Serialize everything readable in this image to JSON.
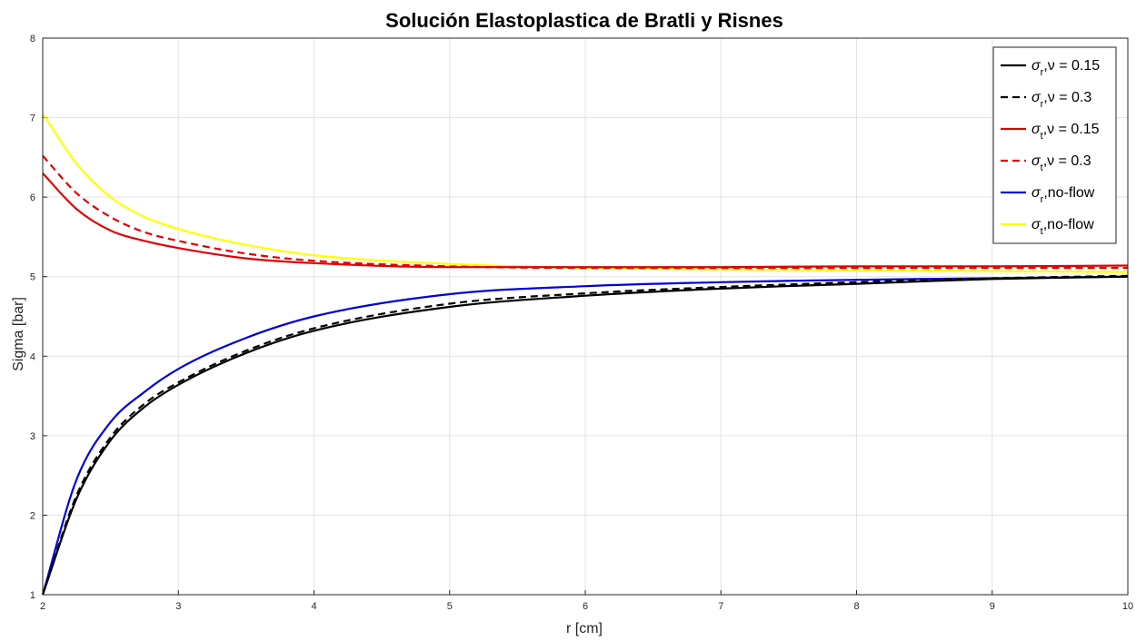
{
  "chart_data": {
    "type": "line",
    "title": "Solución Elastoplastica de Bratli y Risnes",
    "xlabel": "r [cm]",
    "ylabel": "Sigma [bar]",
    "xlim": [
      2,
      10
    ],
    "ylim": [
      1,
      8
    ],
    "xticks": [
      "2",
      "3",
      "4",
      "5",
      "6",
      "7",
      "8",
      "9",
      "10"
    ],
    "yticks": [
      "1",
      "2",
      "3",
      "4",
      "5",
      "6",
      "7",
      "8"
    ],
    "grid": true,
    "legend_position": "top-right",
    "series": [
      {
        "symbol": "σ",
        "sub": "r",
        "suffix": ",ν = 0.15",
        "color": "#000000",
        "dash": "solid",
        "x": [
          2,
          2.25,
          2.5,
          2.75,
          3,
          3.5,
          4,
          5,
          6,
          7,
          8,
          9,
          10
        ],
        "y": [
          1.0,
          2.21,
          2.94,
          3.36,
          3.64,
          4.04,
          4.32,
          4.62,
          4.76,
          4.85,
          4.91,
          4.97,
          5.0
        ]
      },
      {
        "symbol": "σ",
        "sub": "r",
        "suffix": ",ν = 0.3",
        "color": "#000000",
        "dash": "dashed",
        "x": [
          2,
          2.25,
          2.5,
          2.75,
          3,
          3.5,
          4,
          5,
          6,
          7,
          8,
          9,
          10
        ],
        "y": [
          1.0,
          2.25,
          2.98,
          3.4,
          3.67,
          4.07,
          4.35,
          4.66,
          4.79,
          4.87,
          4.93,
          4.98,
          5.01
        ]
      },
      {
        "symbol": "σ",
        "sub": "t",
        "suffix": ",ν = 0.15",
        "color": "#e00000",
        "dash": "solid",
        "x": [
          2,
          2.25,
          2.5,
          2.75,
          3,
          3.5,
          4,
          5,
          6,
          7,
          8,
          9,
          10
        ],
        "y": [
          6.3,
          5.85,
          5.58,
          5.45,
          5.36,
          5.23,
          5.17,
          5.12,
          5.12,
          5.12,
          5.13,
          5.13,
          5.14
        ]
      },
      {
        "symbol": "σ",
        "sub": "t",
        "suffix": ",ν = 0.3",
        "color": "#e00000",
        "dash": "dashed",
        "x": [
          2,
          2.25,
          2.5,
          2.75,
          3,
          3.5,
          4,
          5,
          6,
          7,
          8,
          9,
          10
        ],
        "y": [
          6.52,
          6.05,
          5.75,
          5.56,
          5.45,
          5.29,
          5.2,
          5.13,
          5.11,
          5.11,
          5.11,
          5.11,
          5.11
        ]
      },
      {
        "symbol": "σ",
        "sub": "r",
        "suffix": ",no-flow",
        "color": "#0000d8",
        "dash": "solid",
        "x": [
          2,
          2.25,
          2.5,
          2.75,
          3,
          3.5,
          4,
          5,
          6,
          7,
          8,
          9,
          10
        ],
        "y": [
          1.0,
          2.45,
          3.17,
          3.55,
          3.84,
          4.23,
          4.5,
          4.78,
          4.88,
          4.93,
          4.96,
          4.98,
          5.0
        ]
      },
      {
        "symbol": "σ",
        "sub": "t",
        "suffix": ",no-flow",
        "color": "#ffff00",
        "dash": "solid",
        "x": [
          2,
          2.25,
          2.5,
          2.75,
          3,
          3.5,
          4,
          5,
          6,
          7,
          8,
          9,
          10
        ],
        "y": [
          7.05,
          6.42,
          6.0,
          5.75,
          5.6,
          5.4,
          5.27,
          5.16,
          5.11,
          5.09,
          5.08,
          5.07,
          5.06
        ]
      }
    ]
  }
}
